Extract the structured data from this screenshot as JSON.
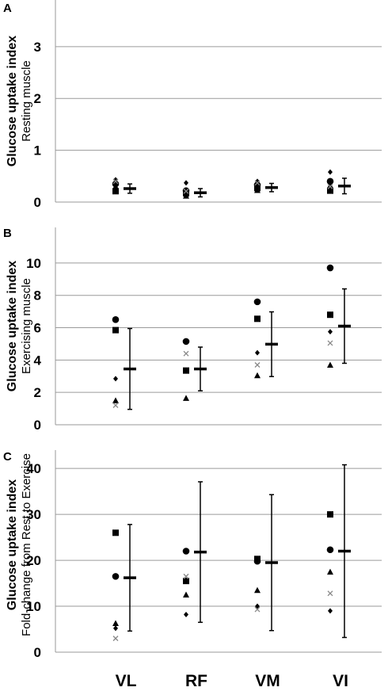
{
  "figure": {
    "x_categories": [
      "VL",
      "RF",
      "VM",
      "VI"
    ]
  },
  "chart_data": [
    {
      "type": "scatter",
      "panel_letter": "A",
      "ylabel_line1": "Glucose uptake index",
      "ylabel_line2": "Resting muscle",
      "yticks": [
        0,
        1,
        2,
        3
      ],
      "ylim": [
        0,
        3.9
      ],
      "grid": true,
      "categories": [
        "VL",
        "RF",
        "VM",
        "VI"
      ],
      "series": [
        {
          "marker": "circle",
          "values": [
            0.35,
            0.22,
            0.33,
            0.4
          ]
        },
        {
          "marker": "square",
          "values": [
            0.21,
            0.17,
            0.27,
            0.22
          ]
        },
        {
          "marker": "diamond",
          "values": [
            0.43,
            0.37,
            0.4,
            0.58
          ]
        },
        {
          "marker": "triangle",
          "values": [
            0.3,
            0.12,
            0.23,
            0.32
          ]
        },
        {
          "marker": "x",
          "values": [
            0.4,
            0.21,
            0.37,
            0.3
          ]
        }
      ],
      "mean": [
        0.26,
        0.18,
        0.28,
        0.31
      ],
      "sd": [
        0.09,
        0.08,
        0.08,
        0.15
      ]
    },
    {
      "type": "scatter",
      "panel_letter": "B",
      "ylabel_line1": "Glucose uptake index",
      "ylabel_line2": "Exercising muscle",
      "yticks": [
        0,
        2,
        4,
        6,
        8,
        10
      ],
      "ylim": [
        0,
        12.2
      ],
      "grid": true,
      "categories": [
        "VL",
        "RF",
        "VM",
        "VI"
      ],
      "series": [
        {
          "marker": "circle",
          "values": [
            6.5,
            5.15,
            7.6,
            9.7
          ]
        },
        {
          "marker": "square",
          "values": [
            5.85,
            3.35,
            6.55,
            6.8
          ]
        },
        {
          "marker": "diamond",
          "values": [
            2.85,
            null,
            4.45,
            5.75
          ]
        },
        {
          "marker": "triangle",
          "values": [
            1.5,
            1.65,
            3.05,
            3.7
          ]
        },
        {
          "marker": "x",
          "values": [
            1.2,
            4.4,
            3.7,
            5.05
          ]
        }
      ],
      "mean": [
        3.45,
        3.45,
        4.98,
        6.1
      ],
      "sd": [
        2.5,
        1.35,
        2.0,
        2.3
      ]
    },
    {
      "type": "scatter",
      "panel_letter": "C",
      "ylabel_line1": "Glucose uptake index",
      "ylabel_line2": "Fold-change from Rest to Exercise",
      "yticks": [
        0,
        10,
        20,
        30,
        40
      ],
      "ylim": [
        0,
        44
      ],
      "grid": true,
      "categories": [
        "VL",
        "RF",
        "VM",
        "VI"
      ],
      "series": [
        {
          "marker": "circle",
          "values": [
            16.5,
            22.0,
            19.8,
            22.3
          ]
        },
        {
          "marker": "square",
          "values": [
            26.0,
            15.5,
            20.3,
            30.0
          ]
        },
        {
          "marker": "diamond",
          "values": [
            5.2,
            8.2,
            10.0,
            9.0
          ]
        },
        {
          "marker": "triangle",
          "values": [
            6.3,
            12.5,
            13.5,
            17.5
          ]
        },
        {
          "marker": "x",
          "values": [
            3.0,
            16.5,
            9.3,
            12.8
          ]
        }
      ],
      "mean": [
        16.2,
        21.8,
        19.5,
        22.0
      ],
      "sd": [
        11.6,
        15.3,
        14.8,
        18.8
      ]
    }
  ]
}
